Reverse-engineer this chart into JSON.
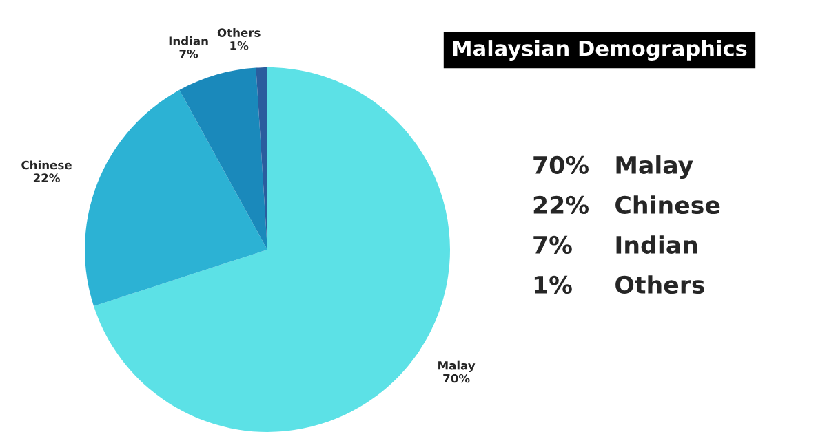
{
  "chart_data": {
    "type": "pie",
    "title": "Malaysian Demographics",
    "categories": [
      "Malay",
      "Chinese",
      "Indian",
      "Others"
    ],
    "values": [
      70,
      22,
      7,
      1
    ],
    "value_labels": [
      "70%",
      "22%",
      "7%",
      "1%"
    ],
    "colors": [
      "#5ce1e6",
      "#2cb2d4",
      "#1a89bb",
      "#2a5d9e"
    ],
    "annotations": [
      "70%   Malay",
      "22%   Chinese",
      "7%     Indian",
      "1%     Others"
    ]
  }
}
